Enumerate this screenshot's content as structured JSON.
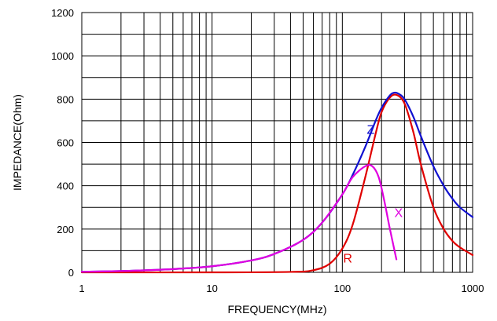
{
  "chart_data": {
    "type": "line",
    "title": "",
    "xlabel": "FREQUENCY(MHz)",
    "ylabel": "IMPEDANCE(Ohm)",
    "x_scale": "log",
    "xlim": [
      1,
      1000
    ],
    "ylim": [
      0,
      1200
    ],
    "x_ticks": [
      1,
      10,
      100,
      1000
    ],
    "x_tick_labels": [
      "1",
      "10",
      "100",
      "1000"
    ],
    "y_ticks": [
      0,
      200,
      400,
      600,
      800,
      1000,
      1200
    ],
    "y_tick_labels": [
      "0",
      "200",
      "400",
      "600",
      "800",
      "1000",
      "1200"
    ],
    "grid": true,
    "legend": "none",
    "series": [
      {
        "name": "Z",
        "color": "#1010d0",
        "x": [
          1,
          2,
          5,
          10,
          20,
          30,
          50,
          70,
          100,
          120,
          150,
          180,
          200,
          230,
          250,
          270,
          300,
          350,
          400,
          500,
          600,
          700,
          800,
          1000
        ],
        "y": [
          3,
          6,
          15,
          28,
          55,
          85,
          150,
          230,
          360,
          450,
          580,
          700,
          760,
          815,
          830,
          825,
          800,
          720,
          630,
          490,
          400,
          340,
          300,
          255
        ]
      },
      {
        "name": "R",
        "color": "#e00000",
        "x": [
          1,
          10,
          40,
          60,
          80,
          100,
          120,
          150,
          180,
          200,
          230,
          260,
          300,
          350,
          400,
          500,
          600,
          700,
          800,
          1000
        ],
        "y": [
          0,
          0,
          2,
          10,
          40,
          110,
          220,
          440,
          640,
          740,
          805,
          820,
          780,
          650,
          500,
          300,
          200,
          145,
          115,
          80
        ]
      },
      {
        "name": "X",
        "color": "#e000e0",
        "x": [
          1,
          2,
          5,
          10,
          20,
          30,
          50,
          70,
          100,
          120,
          150,
          170,
          190,
          210,
          230,
          260
        ],
        "y": [
          3,
          6,
          15,
          28,
          55,
          85,
          150,
          230,
          360,
          440,
          490,
          490,
          440,
          330,
          210,
          60
        ]
      }
    ],
    "annotations": [
      {
        "text": "Z",
        "series": "Z",
        "x": 165,
        "y": 640
      },
      {
        "text": "R",
        "series": "R",
        "x": 110,
        "y": 45
      },
      {
        "text": "X",
        "series": "X",
        "x": 270,
        "y": 255
      }
    ]
  }
}
